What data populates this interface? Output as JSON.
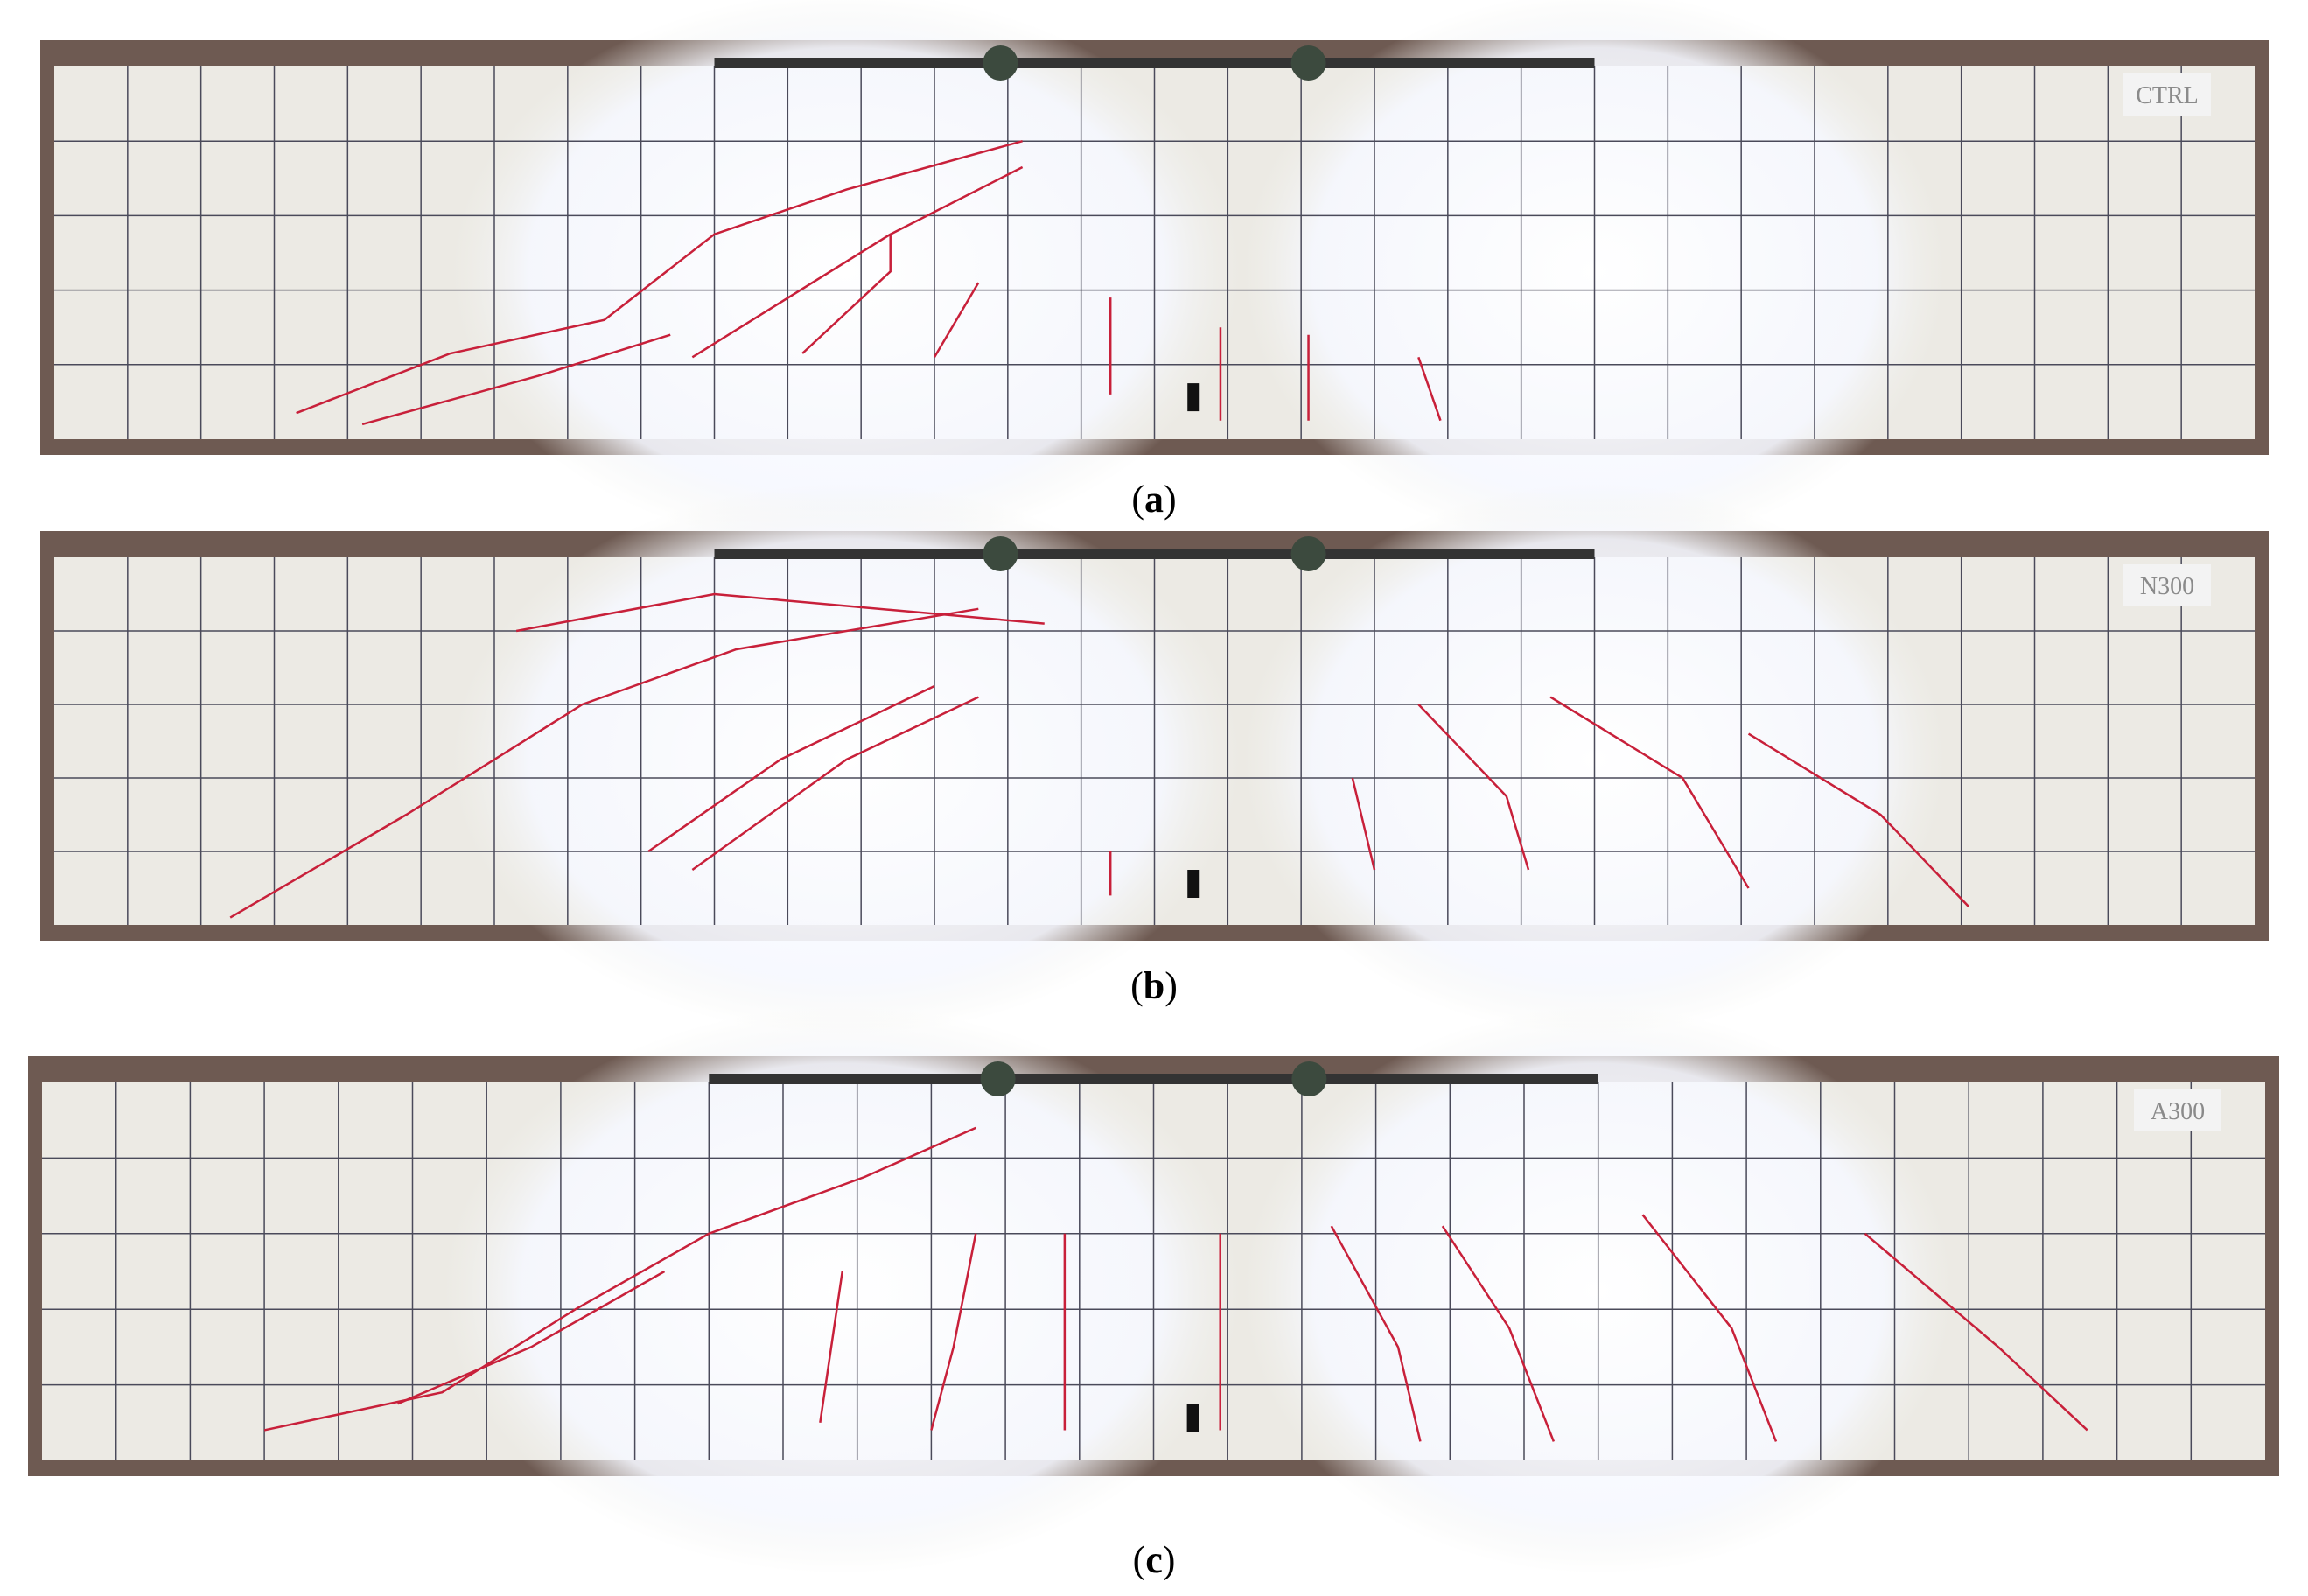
{
  "panels": [
    {
      "label": "CTRL",
      "caption": [
        "(",
        "a",
        ")"
      ]
    },
    {
      "label": "N300",
      "caption": [
        "(",
        "b",
        ")"
      ]
    },
    {
      "label": "A300",
      "caption": [
        "(",
        "c",
        ")"
      ]
    }
  ]
}
